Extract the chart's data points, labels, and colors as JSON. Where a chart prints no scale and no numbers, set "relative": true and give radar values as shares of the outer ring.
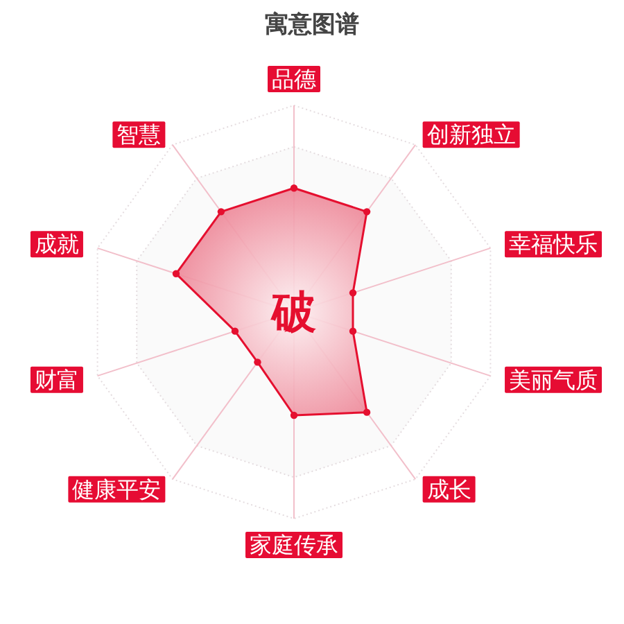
{
  "chart_data": {
    "type": "radar",
    "title": "寓意图谱",
    "categories": [
      "品德",
      "创新独立",
      "幸福快乐",
      "美丽气质",
      "成长",
      "家庭传承",
      "健康平安",
      "财富",
      "成就",
      "智慧"
    ],
    "relative": true,
    "series": [
      {
        "color": "#e50f2f",
        "values": [
          0.6,
          0.6,
          0.3,
          0.3,
          0.6,
          0.5,
          0.3,
          0.3,
          0.6,
          0.6
        ]
      }
    ],
    "annotations": [
      "破"
    ],
    "grid": true,
    "marker": "circle"
  }
}
